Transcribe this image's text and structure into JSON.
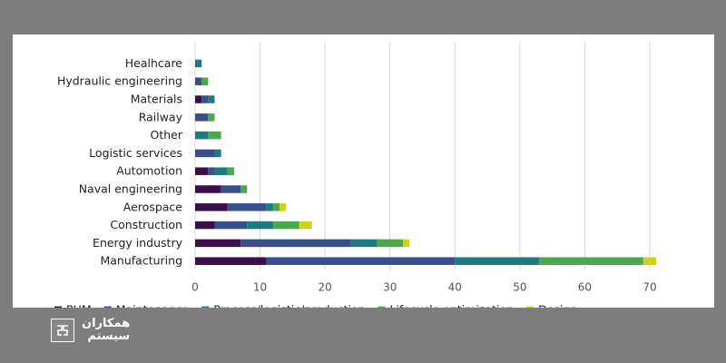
{
  "chart_data": {
    "type": "bar",
    "orientation": "horizontal",
    "stacked": true,
    "title": "",
    "xlabel": "",
    "ylabel": "",
    "xlim": [
      0,
      70
    ],
    "xticks": [
      0,
      10,
      20,
      30,
      40,
      50,
      60,
      70
    ],
    "grid": true,
    "legend_position": "bottom",
    "categories": [
      "Healhcare",
      "Hydraulic engineering",
      "Materials",
      "Railway",
      "Other",
      "Logistic services",
      "Automotion",
      "Naval engineering",
      "Aerospace",
      "Construction",
      "Energy industry",
      "Manufacturing"
    ],
    "series": [
      {
        "name": "PHM",
        "color": "#3b0f4a",
        "values": [
          0,
          0,
          1,
          0,
          0,
          0,
          2,
          4,
          5,
          3,
          7,
          11
        ]
      },
      {
        "name": "Maintenance",
        "color": "#3a4e8c",
        "values": [
          0,
          1,
          1,
          2,
          0,
          3,
          1,
          3,
          6,
          5,
          17,
          29
        ]
      },
      {
        "name": "Process/logistic/production",
        "color": "#1e7a80",
        "values": [
          1,
          0,
          1,
          0,
          2,
          1,
          2,
          0,
          1,
          4,
          4,
          13
        ]
      },
      {
        "name": "Lifecycle optimization",
        "color": "#4aa84e",
        "values": [
          0,
          1,
          0,
          1,
          2,
          0,
          1,
          1,
          1,
          4,
          4,
          16
        ]
      },
      {
        "name": "Design",
        "color": "#cfd21c",
        "values": [
          0,
          0,
          0,
          0,
          0,
          0,
          0,
          0,
          1,
          2,
          1,
          2
        ]
      }
    ]
  },
  "watermark": {
    "line1": "همکاران",
    "line2": "سیستم"
  }
}
